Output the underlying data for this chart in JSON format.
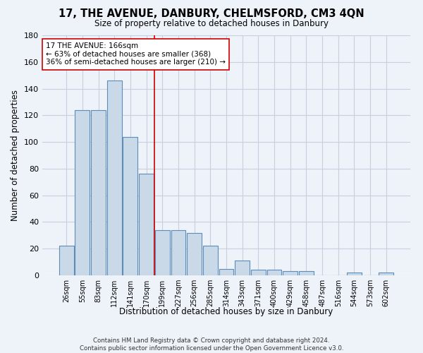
{
  "title": "17, THE AVENUE, DANBURY, CHELMSFORD, CM3 4QN",
  "subtitle": "Size of property relative to detached houses in Danbury",
  "xlabel": "Distribution of detached houses by size in Danbury",
  "ylabel": "Number of detached properties",
  "bar_labels": [
    "26sqm",
    "55sqm",
    "83sqm",
    "112sqm",
    "141sqm",
    "170sqm",
    "199sqm",
    "227sqm",
    "256sqm",
    "285sqm",
    "314sqm",
    "343sqm",
    "371sqm",
    "400sqm",
    "429sqm",
    "458sqm",
    "487sqm",
    "516sqm",
    "544sqm",
    "573sqm",
    "602sqm"
  ],
  "bar_values": [
    22,
    124,
    124,
    146,
    104,
    76,
    34,
    34,
    32,
    22,
    5,
    11,
    4,
    4,
    3,
    3,
    0,
    0,
    2,
    0,
    2
  ],
  "bar_color": "#c9d9e8",
  "bar_edge_color": "#5b8db8",
  "grid_color": "#c8d0e0",
  "background_color": "#eef2f9",
  "vline_x": 5.5,
  "vline_color": "#cc0000",
  "annotation_text": "17 THE AVENUE: 166sqm\n← 63% of detached houses are smaller (368)\n36% of semi-detached houses are larger (210) →",
  "annotation_box_color": "#ffffff",
  "annotation_box_edge": "#cc0000",
  "ylim": [
    0,
    180
  ],
  "yticks": [
    0,
    20,
    40,
    60,
    80,
    100,
    120,
    140,
    160,
    180
  ],
  "footer": "Contains HM Land Registry data © Crown copyright and database right 2024.\nContains public sector information licensed under the Open Government Licence v3.0."
}
